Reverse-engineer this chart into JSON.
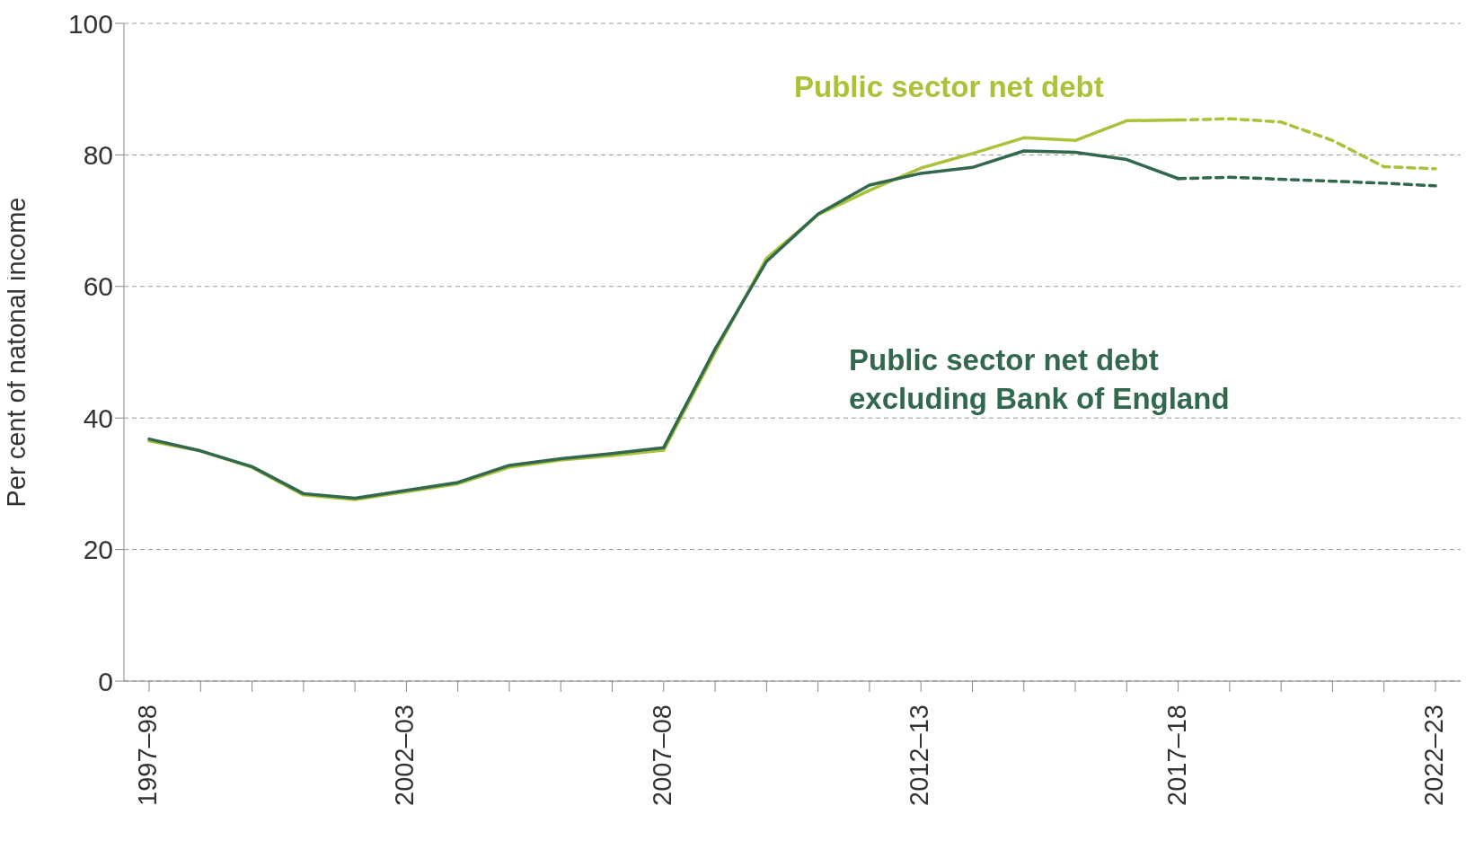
{
  "chart_data": {
    "type": "line",
    "ylabel": "Per cent of natonal income",
    "categories": [
      "1997–98",
      null,
      null,
      null,
      null,
      "2002–03",
      null,
      null,
      null,
      null,
      "2007–08",
      null,
      null,
      null,
      null,
      "2012–13",
      null,
      null,
      null,
      null,
      "2017–18",
      null,
      null,
      null,
      null,
      "2022–23"
    ],
    "series": [
      {
        "name": "Public sector net debt",
        "color": "#a9c23a",
        "line_style": "solid",
        "values": [
          36.5,
          35,
          32.5,
          28.3,
          27.6,
          28.8,
          30.0,
          32.5,
          33.6,
          34.3,
          35.1,
          50.0,
          64.3,
          70.9,
          74.6,
          78.0,
          80.2,
          82.6,
          82.2,
          85.2,
          85.3,
          null,
          null,
          null,
          null,
          null
        ]
      },
      {
        "color": "#a9c23a",
        "line_style": "dashed",
        "values": [
          null,
          null,
          null,
          null,
          null,
          null,
          null,
          null,
          null,
          null,
          null,
          null,
          null,
          null,
          null,
          null,
          null,
          null,
          null,
          null,
          85.3,
          85.5,
          85.0,
          82.2,
          78.2,
          77.9
        ]
      },
      {
        "name": "Public sector net debt excluding Bank of England",
        "color": "#31684e",
        "line_style": "solid",
        "values": [
          36.8,
          35,
          32.6,
          28.5,
          27.8,
          29.0,
          30.2,
          32.8,
          33.8,
          34.6,
          35.5,
          50.5,
          63.8,
          71.0,
          75.4,
          77.2,
          78.1,
          80.6,
          80.4,
          79.3,
          76.4,
          null,
          null,
          null,
          null,
          null
        ]
      },
      {
        "color": "#31684e",
        "line_style": "dashed",
        "values": [
          null,
          null,
          null,
          null,
          null,
          null,
          null,
          null,
          null,
          null,
          null,
          null,
          null,
          null,
          null,
          null,
          null,
          null,
          null,
          null,
          76.4,
          76.6,
          76.3,
          76.0,
          75.7,
          75.3
        ]
      }
    ],
    "ylim": [
      0,
      100
    ],
    "yticks": [
      0,
      20,
      40,
      60,
      80,
      100
    ],
    "grid": "y",
    "marker": "none"
  }
}
